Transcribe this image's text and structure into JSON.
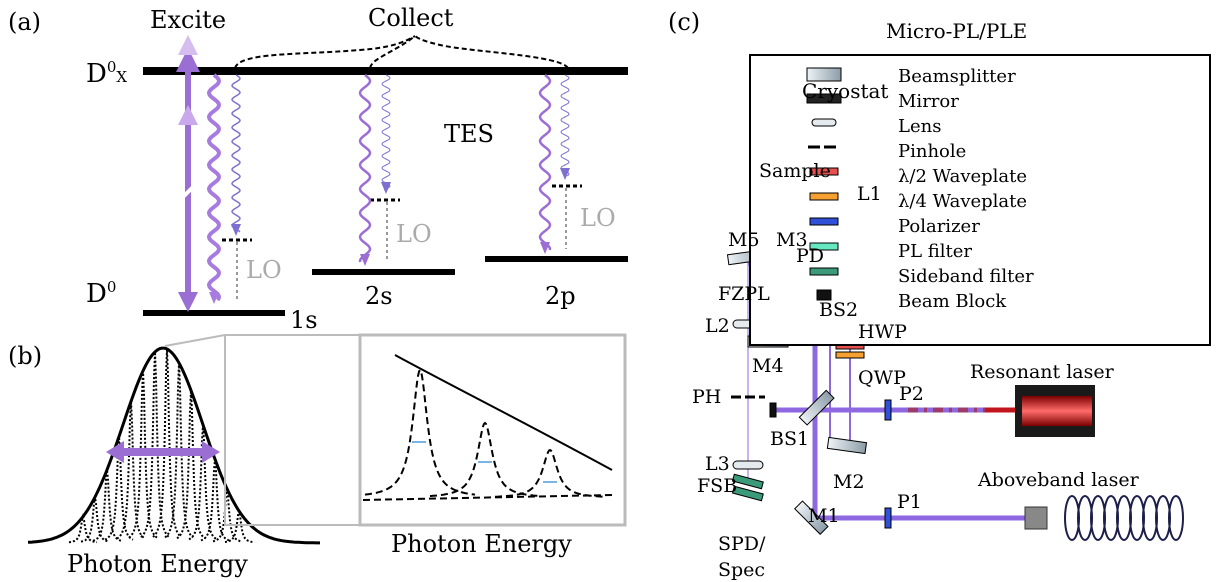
{
  "panel_a": {
    "tag": "(a)",
    "excite": "Excite",
    "collect": "Collect",
    "upper": {
      "base": "D",
      "sup": "0",
      "suffix": "X"
    },
    "lower": {
      "base": "D",
      "sup": "0"
    },
    "tes": "TES",
    "levels": [
      "1s",
      "2s",
      "2p"
    ],
    "lo": [
      "LO",
      "LO",
      "LO"
    ]
  },
  "panel_b": {
    "tag": "(b)",
    "xlabel": "Photon Energy",
    "inset_xlabel": "Photon Energy"
  },
  "panel_c": {
    "tag": "(c)",
    "title": "Micro-PL/PLE",
    "cryostat": "Cryostat",
    "labels": {
      "sample": "Sample",
      "l1": "L1",
      "m5": "M5",
      "m3": "M3",
      "pd": "PD",
      "fzpl": "FZPL",
      "bs2": "BS2",
      "l2": "L2",
      "m4": "M4",
      "hwp": "HWP",
      "qwp": "QWP",
      "ph": "PH",
      "bs1": "BS1",
      "p2": "P2",
      "resonant": "Resonant laser",
      "l3": "L3",
      "fsb": "FSB",
      "m2": "M2",
      "p1": "P1",
      "aboveband": "Aboveband laser",
      "m1": "M1",
      "spd": "SPD/",
      "spec": "Spec"
    },
    "legend": [
      "Beamsplitter",
      "Mirror",
      "Lens",
      "Pinhole",
      "λ/2 Waveplate",
      "λ/4 Waveplate",
      "Polarizer",
      "PL filter",
      "Sideband filter",
      "Beam Block"
    ]
  }
}
